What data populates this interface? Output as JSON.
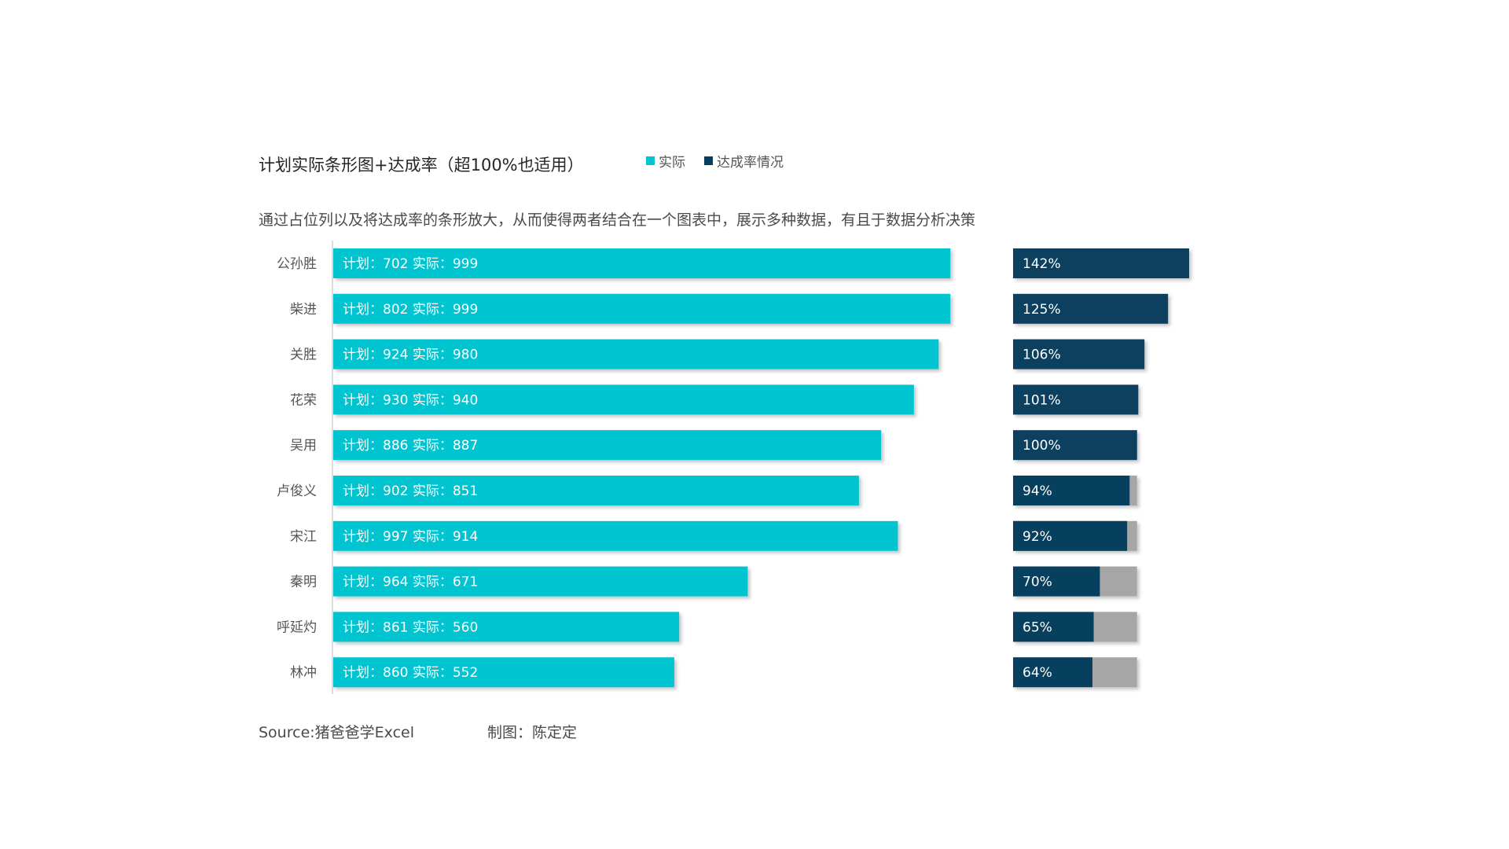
{
  "title": "计划实际条形图+达成率（超100%也适用）",
  "subtitle": "通过占位列以及将达成率的条形放大，从而使得两者结合在一个图表中，展示多种数据，有且于数据分析决策",
  "legend": [
    {
      "label": "实际",
      "color": "#00c4cf"
    },
    {
      "label": "达成率情况",
      "color": "#073f5e"
    }
  ],
  "colors": {
    "actual": "#00c4cf",
    "rate": "#073f5e",
    "placeholder": "#a6a6a6",
    "axis": "#d0d0d0"
  },
  "footer": {
    "source": "Source:猪爸爸学Excel",
    "author": "制图：陈定定"
  },
  "chart_data": {
    "type": "bar",
    "orientation": "horizontal",
    "title": "计划实际条形图+达成率（超100%也适用）",
    "categories": [
      "公孙胜",
      "柴进",
      "关胜",
      "花荣",
      "吴用",
      "卢俊义",
      "宋江",
      "秦明",
      "呼延灼",
      "林冲"
    ],
    "plan": [
      702,
      802,
      924,
      930,
      886,
      902,
      997,
      964,
      861,
      860
    ],
    "actual": [
      999,
      999,
      980,
      940,
      887,
      851,
      914,
      671,
      560,
      552
    ],
    "rate_percent": [
      142,
      125,
      106,
      101,
      100,
      94,
      92,
      70,
      65,
      64
    ],
    "bar_label_plan_prefix": "计划：",
    "bar_label_actual_prefix": "实际：",
    "rate_placeholder_percent": 100,
    "xlim": [
      0,
      1000
    ],
    "grid": false
  }
}
